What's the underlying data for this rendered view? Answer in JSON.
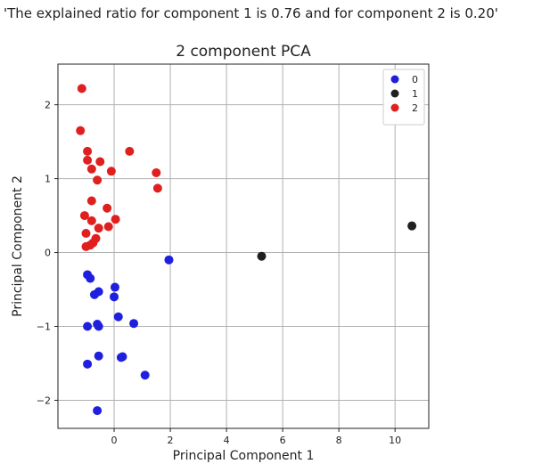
{
  "output_text": "'The explained ratio for component 1 is 0.76 and for component 2 is 0.20'",
  "chart_data": {
    "type": "scatter",
    "title": "2 component PCA",
    "xlabel": "Principal Component 1",
    "ylabel": "Principal Component 2",
    "xlim": [
      -2.0,
      11.2
    ],
    "ylim": [
      -2.38,
      2.55
    ],
    "xticks": [
      0,
      2,
      4,
      6,
      8,
      10
    ],
    "yticks": [
      -2,
      -1,
      0,
      1,
      2
    ],
    "grid": true,
    "legend": "top-right",
    "series": [
      {
        "name": "0",
        "color": "#1f1fe0",
        "points": [
          [
            -0.95,
            -0.3
          ],
          [
            -0.85,
            -0.35
          ],
          [
            -0.55,
            -0.53
          ],
          [
            -0.7,
            -0.57
          ],
          [
            0.03,
            -0.47
          ],
          [
            0.0,
            -0.6
          ],
          [
            -0.6,
            -0.97
          ],
          [
            -0.55,
            -1.0
          ],
          [
            -0.95,
            -1.0
          ],
          [
            0.15,
            -0.87
          ],
          [
            0.7,
            -0.96
          ],
          [
            -0.55,
            -1.4
          ],
          [
            0.25,
            -1.42
          ],
          [
            0.3,
            -1.41
          ],
          [
            -0.95,
            -1.51
          ],
          [
            1.1,
            -1.66
          ],
          [
            -0.6,
            -2.14
          ],
          [
            1.95,
            -0.1
          ]
        ]
      },
      {
        "name": "1",
        "color": "#202020",
        "points": [
          [
            5.25,
            -0.05
          ],
          [
            10.6,
            0.36
          ]
        ]
      },
      {
        "name": "2",
        "color": "#e01f1f",
        "points": [
          [
            -1.15,
            2.22
          ],
          [
            -1.2,
            1.65
          ],
          [
            -0.95,
            1.37
          ],
          [
            -0.95,
            1.25
          ],
          [
            -0.5,
            1.23
          ],
          [
            -0.8,
            1.13
          ],
          [
            0.55,
            1.37
          ],
          [
            -0.1,
            1.1
          ],
          [
            1.5,
            1.08
          ],
          [
            -0.6,
            0.98
          ],
          [
            1.55,
            0.87
          ],
          [
            -0.8,
            0.7
          ],
          [
            -0.25,
            0.6
          ],
          [
            -1.05,
            0.5
          ],
          [
            0.05,
            0.45
          ],
          [
            -0.8,
            0.43
          ],
          [
            -0.55,
            0.33
          ],
          [
            -0.2,
            0.35
          ],
          [
            -1.0,
            0.26
          ],
          [
            -0.65,
            0.19
          ],
          [
            -0.75,
            0.13
          ],
          [
            -0.85,
            0.1
          ],
          [
            -1.0,
            0.08
          ]
        ]
      }
    ]
  }
}
